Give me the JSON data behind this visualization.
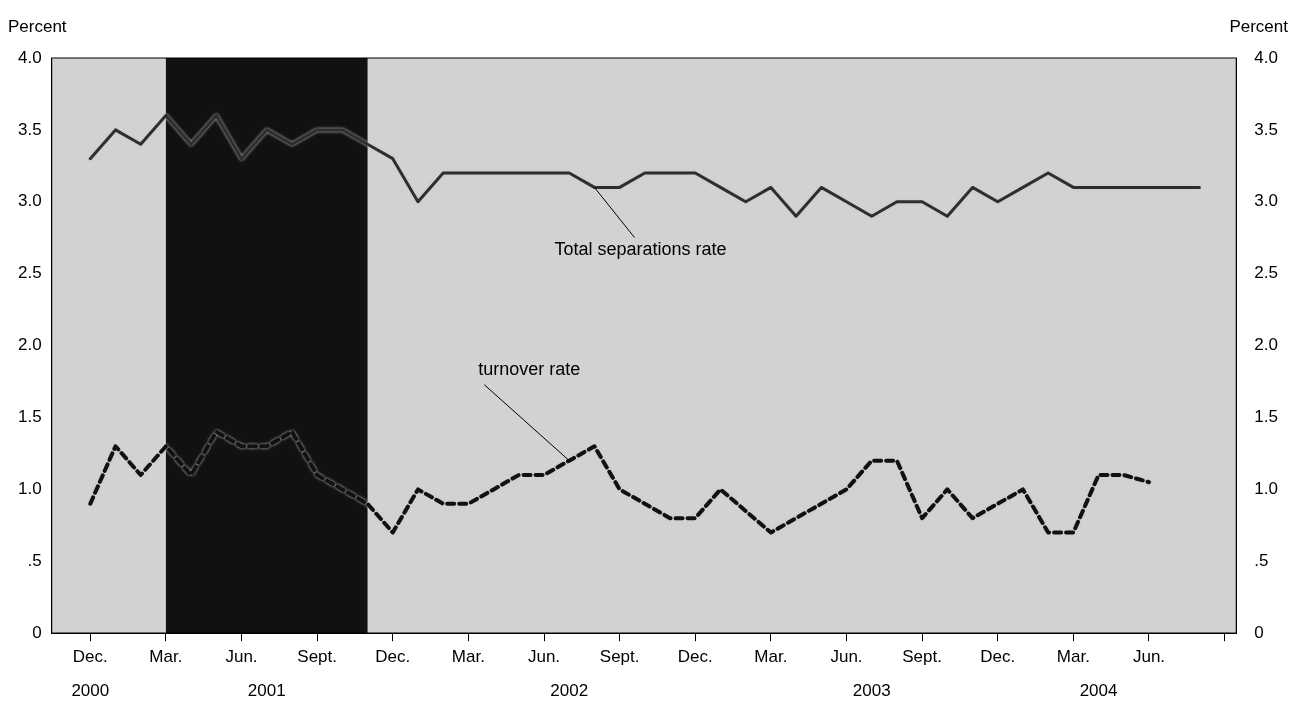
{
  "chart_data": {
    "type": "line",
    "ylabel": "Percent",
    "y2label": "Percent",
    "x": [
      "2000-12",
      "2001-01",
      "2001-02",
      "2001-03",
      "2001-04",
      "2001-05",
      "2001-06",
      "2001-07",
      "2001-08",
      "2001-09",
      "2001-10",
      "2001-11",
      "2001-12",
      "2002-01",
      "2002-02",
      "2002-03",
      "2002-04",
      "2002-05",
      "2002-06",
      "2002-07",
      "2002-08",
      "2002-09",
      "2002-10",
      "2002-11",
      "2002-12",
      "2003-01",
      "2003-02",
      "2003-03",
      "2003-04",
      "2003-05",
      "2003-06",
      "2003-07",
      "2003-08",
      "2003-09",
      "2003-10",
      "2003-11",
      "2003-12",
      "2004-01",
      "2004-02",
      "2004-03",
      "2004-04",
      "2004-05",
      "2004-06",
      "2004-07",
      "2004-08"
    ],
    "series": [
      {
        "name": "Total separations rate",
        "color": "#2e2e2e",
        "line_style": "solid",
        "values": [
          3.3,
          3.5,
          3.4,
          3.6,
          3.4,
          3.6,
          3.3,
          3.5,
          3.4,
          3.5,
          3.5,
          3.4,
          3.3,
          3.0,
          3.2,
          3.2,
          3.2,
          3.2,
          3.2,
          3.2,
          3.1,
          3.1,
          3.2,
          3.2,
          3.2,
          3.1,
          3.0,
          3.1,
          2.9,
          3.1,
          3.0,
          2.9,
          3.0,
          3.0,
          2.9,
          3.1,
          3.0,
          3.1,
          3.2,
          3.1,
          3.1,
          3.1,
          3.1,
          3.1,
          3.1
        ]
      },
      {
        "name": "turnover rate",
        "color": "#111111",
        "line_style": "dashed",
        "values": [
          0.9,
          1.3,
          1.1,
          1.3,
          1.1,
          1.4,
          1.3,
          1.3,
          1.4,
          1.1,
          1.0,
          0.9,
          0.7,
          1.0,
          0.9,
          0.9,
          1.0,
          1.1,
          1.1,
          1.2,
          1.3,
          1.0,
          0.9,
          0.8,
          0.8,
          1.0,
          0.85,
          0.7,
          0.8,
          0.9,
          1.0,
          1.2,
          1.2,
          0.8,
          1.0,
          0.8,
          0.9,
          1.0,
          0.7,
          0.7,
          1.1,
          1.1,
          1.05,
          null,
          null
        ]
      }
    ],
    "xlim": [
      "2000-10-15",
      "2004-09-15"
    ],
    "xticks": [
      {
        "value": "2000-12",
        "label": "Dec."
      },
      {
        "value": "2001-03",
        "label": "Mar."
      },
      {
        "value": "2001-06",
        "label": "Jun."
      },
      {
        "value": "2001-09",
        "label": "Sept."
      },
      {
        "value": "2001-12",
        "label": "Dec."
      },
      {
        "value": "2002-03",
        "label": "Mar."
      },
      {
        "value": "2002-06",
        "label": "Jun."
      },
      {
        "value": "2002-09",
        "label": "Sept."
      },
      {
        "value": "2002-12",
        "label": "Dec."
      },
      {
        "value": "2003-03",
        "label": "Mar."
      },
      {
        "value": "2003-06",
        "label": "Jun."
      },
      {
        "value": "2003-09",
        "label": "Sept."
      },
      {
        "value": "2003-12",
        "label": "Dec."
      },
      {
        "value": "2004-03",
        "label": "Mar."
      },
      {
        "value": "2004-06",
        "label": "Jun."
      },
      {
        "value": "2004-09",
        "label": null
      }
    ],
    "x2lim": [
      "2000-10-15",
      "2004-09-15"
    ],
    "x2ticks": [
      {
        "value": "2000-12",
        "label": "2000"
      },
      {
        "value": "2001-07",
        "label": "2001"
      },
      {
        "value": "2002-07",
        "label": "2002"
      },
      {
        "value": "2003-07",
        "label": "2003"
      },
      {
        "value": "2004-04",
        "label": "2004"
      }
    ],
    "ylim": [
      0,
      4
    ],
    "yticks": [
      0,
      {
        "value": 0.5,
        "label": ".5"
      },
      {
        "value": 1,
        "label": "1.0"
      },
      1.5,
      {
        "value": 2,
        "label": "2.0"
      },
      2.5,
      {
        "value": 3,
        "label": "3.0"
      },
      3.5,
      {
        "value": 4,
        "label": "4.0"
      }
    ],
    "y2lim": [
      0,
      4
    ],
    "y2ticks": [
      0,
      {
        "value": 0.5,
        "label": ".5"
      },
      {
        "value": 1,
        "label": "1.0"
      },
      1.5,
      {
        "value": 2,
        "label": "2.0"
      },
      2.5,
      {
        "value": 3,
        "label": "3.0"
      },
      3.5,
      {
        "value": 4,
        "label": "4.0"
      }
    ],
    "bands": [
      {
        "axis": "x",
        "from": "2001-03",
        "to": "2001-11",
        "color": "#111111"
      }
    ],
    "grid": false,
    "legend": false,
    "marker": "none"
  }
}
